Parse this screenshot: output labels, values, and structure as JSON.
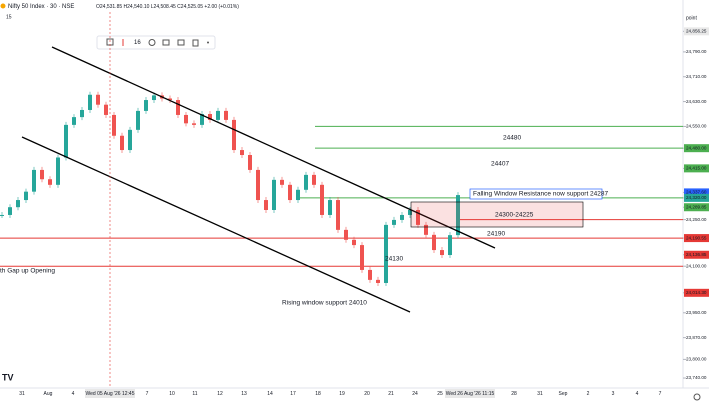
{
  "header": {
    "symbol": "Nifty 50 Index · 30 · NSE",
    "ohlc": "O24,531.85 H24,540.10 L24,508.45 C24,525.05 +2.00 (+0.01%)",
    "indicator": "15"
  },
  "toolbar": {
    "size": "16"
  },
  "price_axis": {
    "unit": "point",
    "ylim": [
      23695,
      24912
    ],
    "ticks": [
      {
        "value": 24856.25,
        "label": "24,856.25",
        "color": "#e8e8e8"
      },
      {
        "value": 24790,
        "label": "24,790.00"
      },
      {
        "value": 24710,
        "label": "24,710.00"
      },
      {
        "value": 24630,
        "label": "24,630.00"
      },
      {
        "value": 24550,
        "label": "24,550.00"
      },
      {
        "value": 24480,
        "label": "24,480.00",
        "color": "#4caf50"
      },
      {
        "value": 24415,
        "label": "24,415.00",
        "color": "#4caf50"
      },
      {
        "value": 24337.6,
        "label": "24,337.60",
        "color": "#2962ff"
      },
      {
        "value": 24320,
        "label": "24,320.00",
        "color": "#26a69a"
      },
      {
        "value": 24289.85,
        "label": "24,289.85",
        "color": "#4caf50"
      },
      {
        "value": 24250,
        "label": "24,250.00"
      },
      {
        "value": 24190.55,
        "label": "24,190.55",
        "color": "#e53935"
      },
      {
        "value": 24136.85,
        "label": "24,136.85",
        "color": "#e53935"
      },
      {
        "value": 24100,
        "label": "24,100.00"
      },
      {
        "value": 24014.3,
        "label": "24,014.30",
        "color": "#e53935"
      },
      {
        "value": 23950,
        "label": "23,950.00"
      },
      {
        "value": 23870,
        "label": "23,870.00"
      },
      {
        "value": 23800,
        "label": "23,800.00"
      },
      {
        "value": 23740,
        "label": "23,740.00"
      }
    ]
  },
  "candles": {
    "up_color": "#26a69a",
    "down_color": "#ef5350",
    "closes": [
      24265,
      24290,
      24313,
      24340,
      24410,
      24380,
      24362,
      24450,
      24555,
      24580,
      24603,
      24652,
      24620,
      24587,
      24520,
      24474,
      24539,
      24600,
      24635,
      24650,
      24640,
      24635,
      24587,
      24560,
      24555,
      24590,
      24571,
      24600,
      24571,
      24474,
      24458,
      24410,
      24313,
      24281,
      24378,
      24362,
      24313,
      24346,
      24394,
      24362,
      24265,
      24313,
      24217,
      24185,
      24168,
      24088,
      24056,
      24046,
      24233,
      24249,
      24265,
      24281,
      24233,
      24201,
      24152,
      24136,
      24200,
      24329
    ]
  },
  "time_axis": {
    "labels": [
      "31",
      "Aug",
      "4",
      "Wed 05 Aug '26 12:45",
      "7",
      "10",
      "11",
      "12",
      "13",
      "14",
      "17",
      "18",
      "19",
      "20",
      "21",
      "24",
      "25",
      "Wed 26 Aug '26 11:15",
      "28",
      "31",
      "Sep",
      "2",
      "3",
      "4",
      "7"
    ]
  },
  "annotations": {
    "level_24480": "24480",
    "level_24407": "24407",
    "falling_window": "Falling Window Resistance now support 24287",
    "zone": "24300-24225",
    "level_24190": "24190",
    "level_24130": "24130",
    "gap_up": "th Gap up Opening",
    "rising_window": "Rising window support 24010"
  }
}
